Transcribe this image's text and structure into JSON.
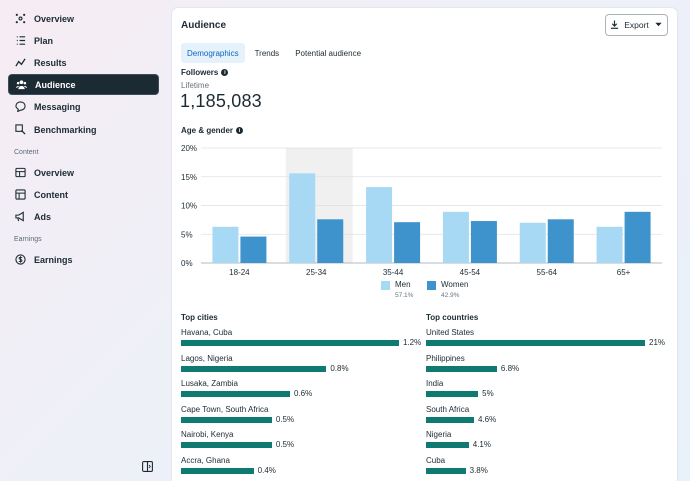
{
  "sidebar": {
    "items": [
      {
        "label": "Overview",
        "icon": "overview-icon"
      },
      {
        "label": "Plan",
        "icon": "plan-icon"
      },
      {
        "label": "Results",
        "icon": "results-icon"
      },
      {
        "label": "Audience",
        "icon": "audience-icon",
        "active": true
      },
      {
        "label": "Messaging",
        "icon": "messaging-icon"
      },
      {
        "label": "Benchmarking",
        "icon": "benchmarking-icon"
      }
    ],
    "sections": [
      {
        "label": "Content",
        "items": [
          {
            "label": "Overview",
            "icon": "content-overview-icon"
          },
          {
            "label": "Content",
            "icon": "content-icon"
          },
          {
            "label": "Ads",
            "icon": "ads-icon"
          }
        ]
      },
      {
        "label": "Earnings",
        "items": [
          {
            "label": "Earnings",
            "icon": "dollar-icon"
          }
        ]
      }
    ]
  },
  "card": {
    "title": "Audience",
    "export_label": "Export",
    "tabs": [
      "Demographics",
      "Trends",
      "Potential audience"
    ],
    "active_tab": 0,
    "followers_heading": "Followers",
    "lifetime_label": "Lifetime",
    "followers_count": "1,185,083",
    "age_gender_heading": "Age & gender"
  },
  "colors": {
    "men": "#a7d9f5",
    "women": "#3f93cc",
    "bar": "#0e7a72",
    "active_nav": "#1c2b33"
  },
  "chart_data": {
    "type": "bar",
    "categories": [
      "18-24",
      "25-34",
      "35-44",
      "45-54",
      "55-64",
      "65+"
    ],
    "series": [
      {
        "name": "Men",
        "values": [
          6.3,
          15.6,
          13.2,
          8.9,
          7.0,
          6.3
        ],
        "share": "57.1%"
      },
      {
        "name": "Women",
        "values": [
          4.6,
          7.6,
          7.1,
          7.3,
          7.6,
          8.9
        ],
        "share": "42.9%"
      }
    ],
    "ylim": [
      0,
      20
    ],
    "yticks": [
      "0%",
      "5%",
      "10%",
      "15%",
      "20%"
    ],
    "highlight_category": "25-34",
    "grid": true,
    "legend": "bottom-center"
  },
  "top_cities": {
    "heading": "Top cities",
    "rows": [
      {
        "label": "Havana, Cuba",
        "value": "1.2%",
        "pct": 1.2
      },
      {
        "label": "Lagos, Nigeria",
        "value": "0.8%",
        "pct": 0.8
      },
      {
        "label": "Lusaka, Zambia",
        "value": "0.6%",
        "pct": 0.6
      },
      {
        "label": "Cape Town, South Africa",
        "value": "0.5%",
        "pct": 0.5
      },
      {
        "label": "Nairobi, Kenya",
        "value": "0.5%",
        "pct": 0.5
      },
      {
        "label": "Accra, Ghana",
        "value": "0.4%",
        "pct": 0.4
      }
    ]
  },
  "top_countries": {
    "heading": "Top countries",
    "rows": [
      {
        "label": "United States",
        "value": "21%",
        "pct": 21
      },
      {
        "label": "Philippines",
        "value": "6.8%",
        "pct": 6.8
      },
      {
        "label": "India",
        "value": "5%",
        "pct": 5
      },
      {
        "label": "South Africa",
        "value": "4.6%",
        "pct": 4.6
      },
      {
        "label": "Nigeria",
        "value": "4.1%",
        "pct": 4.1
      },
      {
        "label": "Cuba",
        "value": "3.8%",
        "pct": 3.8
      }
    ]
  }
}
